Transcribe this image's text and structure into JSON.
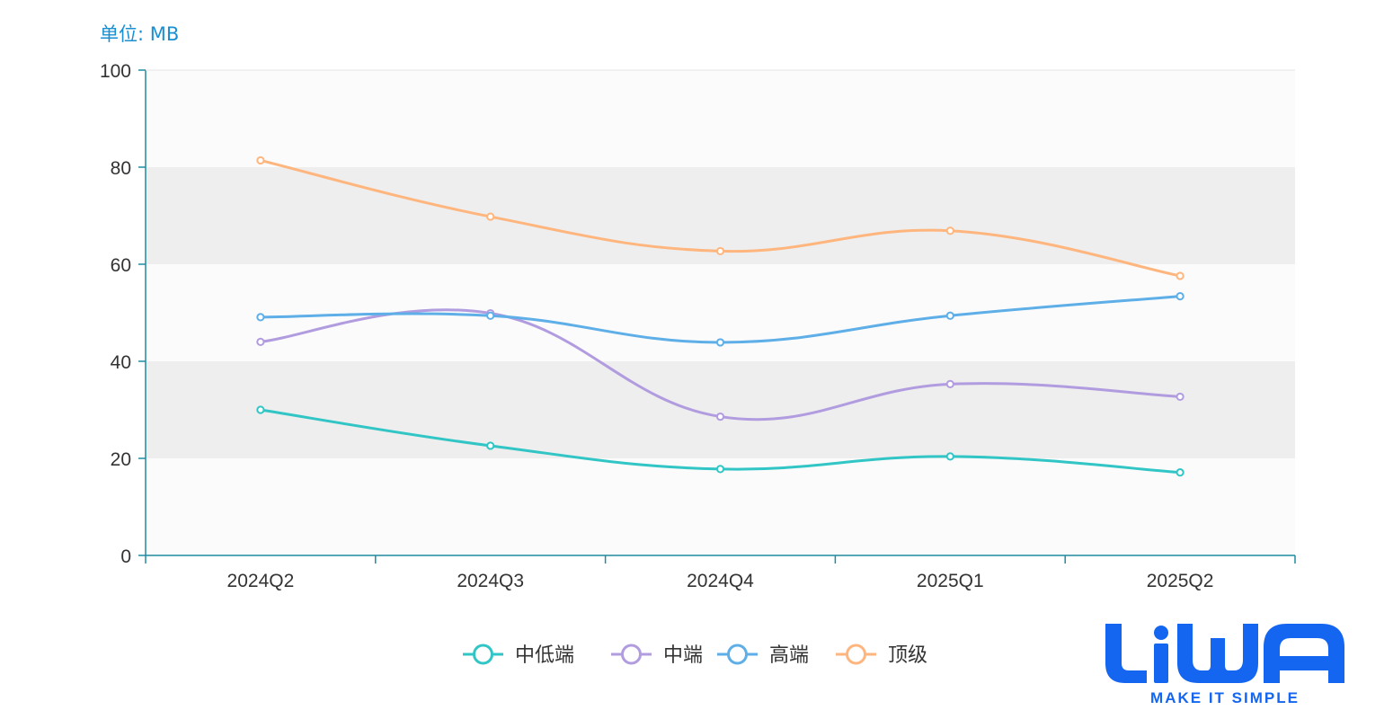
{
  "chart_data": {
    "type": "line",
    "unit_label": "单位: MB",
    "categories": [
      "2024Q2",
      "2024Q3",
      "2024Q4",
      "2025Q1",
      "2025Q2"
    ],
    "ylim": [
      0,
      100
    ],
    "yticks": [
      0,
      20,
      40,
      60,
      80,
      100
    ],
    "series": [
      {
        "name": "中低端",
        "color": "#32c5c5",
        "values": [
          30.0,
          22.6,
          17.8,
          20.4,
          17.1
        ]
      },
      {
        "name": "中端",
        "color": "#b19ce0",
        "values": [
          44.0,
          49.9,
          28.6,
          35.3,
          32.7
        ]
      },
      {
        "name": "高端",
        "color": "#5eaee8",
        "values": [
          49.1,
          49.4,
          43.9,
          49.4,
          53.4
        ]
      },
      {
        "name": "顶级",
        "color": "#ffb67e",
        "values": [
          81.4,
          69.8,
          62.7,
          66.9,
          57.6
        ]
      }
    ],
    "smooth": true,
    "grid": "alternating horizontal bands",
    "legend_position": "bottom-center"
  },
  "logo": {
    "text": "LiWA",
    "tagline": "MAKE IT SIMPLE",
    "color": "#1466f0"
  }
}
